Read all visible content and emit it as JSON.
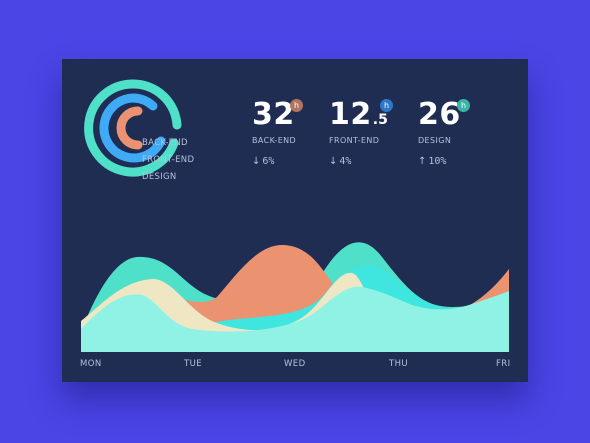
{
  "colors": {
    "backend": "#eb9270",
    "frontend": "#3faaf5",
    "design": "#4fe0c9",
    "cream": "#efe7c3",
    "light_teal": "#8ff2e4",
    "badge_backend": "#b4735d",
    "badge_frontend": "#2f78c9",
    "badge_design": "#3ab5a5"
  },
  "legend": {
    "items": [
      {
        "label": "BACK-END"
      },
      {
        "label": "FRONT-END"
      },
      {
        "label": "DESIGN"
      }
    ]
  },
  "stats": [
    {
      "value": "32",
      "decimal": "",
      "unit": "h",
      "label": "BACK-END",
      "arrow": "↓",
      "change": "6%"
    },
    {
      "value": "12",
      "decimal": ".5",
      "unit": "h",
      "label": "FRONT-END",
      "arrow": "↓",
      "change": "4%"
    },
    {
      "value": "26",
      "decimal": "",
      "unit": "h",
      "label": "DESIGN",
      "arrow": "↑",
      "change": "10%"
    }
  ],
  "days": [
    "MON",
    "TUE",
    "WED",
    "THU",
    "FRI"
  ]
}
